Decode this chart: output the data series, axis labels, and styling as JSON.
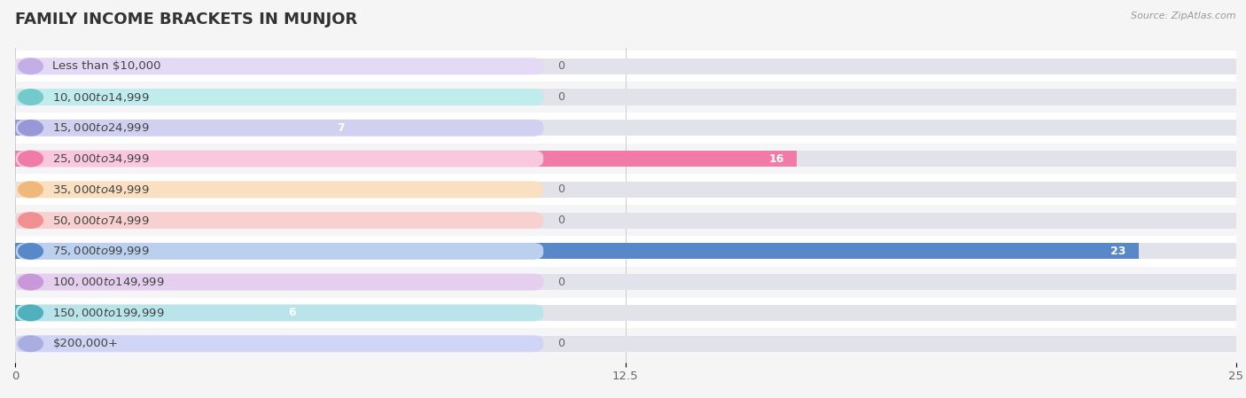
{
  "title": "FAMILY INCOME BRACKETS IN MUNJOR",
  "source": "Source: ZipAtlas.com",
  "categories": [
    "Less than $10,000",
    "$10,000 to $14,999",
    "$15,000 to $24,999",
    "$25,000 to $34,999",
    "$35,000 to $49,999",
    "$50,000 to $74,999",
    "$75,000 to $99,999",
    "$100,000 to $149,999",
    "$150,000 to $199,999",
    "$200,000+"
  ],
  "values": [
    0,
    0,
    7,
    16,
    0,
    0,
    23,
    0,
    6,
    0
  ],
  "bar_colors": [
    "#c4aee8",
    "#72caca",
    "#9898d8",
    "#f07aa8",
    "#f0b87a",
    "#f09090",
    "#5888c8",
    "#c898d8",
    "#50b0bc",
    "#a8aee0"
  ],
  "label_bg_colors": [
    "#e4daf5",
    "#c0ecee",
    "#d0d0f0",
    "#fac8dc",
    "#fae0c0",
    "#f8d0d0",
    "#bad0ee",
    "#e4d0ee",
    "#b8e4ea",
    "#d0d4f5"
  ],
  "xlim": [
    0,
    25
  ],
  "xticks": [
    0,
    12.5,
    25
  ],
  "row_bg_colors": [
    "#ffffff",
    "#f5f5f8"
  ],
  "bar_bg_color": "#e2e2ea",
  "title_fontsize": 13,
  "label_fontsize": 9.5,
  "value_fontsize": 9
}
